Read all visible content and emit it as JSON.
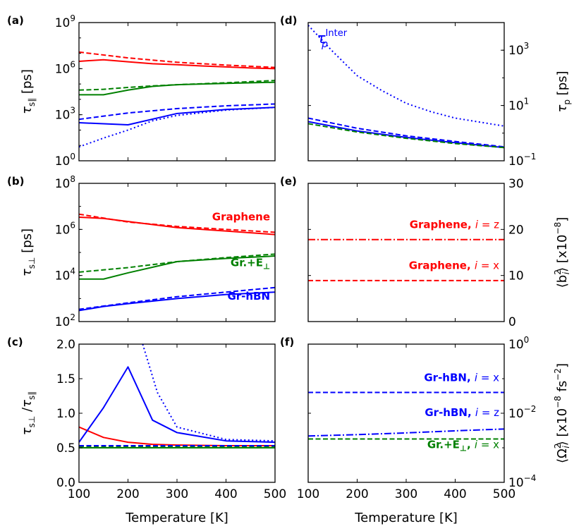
{
  "figure": {
    "xlabel": "Temperature [K]",
    "xticks": [
      "100",
      "200",
      "300",
      "400",
      "500"
    ]
  },
  "colors": {
    "red": "#ff0000",
    "green": "#008000",
    "blue": "#0000ff"
  },
  "chart_data": [
    {
      "id": "a",
      "panel_label": "(a)",
      "type": "line",
      "yscale": "log",
      "xlim": [
        100,
        500
      ],
      "ylim": [
        1,
        1000000000
      ],
      "ylabel_main": "τ",
      "ylabel_sub": "s∥",
      "ylabel_unit": " [ps]",
      "yticks": [
        {
          "v": 1,
          "base": "10",
          "exp": "0"
        },
        {
          "v": 1000,
          "base": "10",
          "exp": "3"
        },
        {
          "v": 1000000,
          "base": "10",
          "exp": "6"
        },
        {
          "v": 1000000000,
          "base": "10",
          "exp": "9"
        }
      ],
      "series": [
        {
          "color": "red",
          "style": "solid",
          "x": [
            100,
            150,
            200,
            250,
            300,
            350,
            400,
            450,
            500
          ],
          "y": [
            3000000,
            3800000,
            2800000,
            2100000,
            1800000,
            1500000,
            1300000,
            1100000,
            1000000
          ]
        },
        {
          "color": "red",
          "style": "dashed",
          "x": [
            100,
            200,
            300,
            400,
            500
          ],
          "y": [
            12000000,
            5000000,
            2600000,
            1700000,
            1200000
          ]
        },
        {
          "color": "green",
          "style": "solid",
          "x": [
            100,
            150,
            200,
            250,
            300,
            400,
            500
          ],
          "y": [
            20000,
            20000,
            40000,
            70000,
            90000,
            110000,
            130000
          ]
        },
        {
          "color": "green",
          "style": "dashed",
          "x": [
            100,
            150,
            200,
            250,
            300,
            400,
            500
          ],
          "y": [
            40000,
            45000,
            60000,
            75000,
            90000,
            120000,
            170000
          ]
        },
        {
          "color": "blue",
          "style": "solid",
          "x": [
            100,
            200,
            300,
            400,
            500
          ],
          "y": [
            300,
            220,
            1200,
            2200,
            3000
          ]
        },
        {
          "color": "blue",
          "style": "dashed",
          "x": [
            100,
            200,
            300,
            400,
            500
          ],
          "y": [
            500,
            1300,
            2500,
            3800,
            5000
          ]
        },
        {
          "color": "blue",
          "style": "dotted",
          "x": [
            100,
            150,
            200,
            250,
            300,
            400,
            500
          ],
          "y": [
            8,
            30,
            100,
            400,
            900,
            2000,
            3000
          ]
        }
      ],
      "annotations": []
    },
    {
      "id": "b",
      "panel_label": "(b)",
      "type": "line",
      "yscale": "log",
      "xlim": [
        100,
        500
      ],
      "ylim": [
        100,
        100000000
      ],
      "ylabel_main": "τ",
      "ylabel_sub": "s⊥",
      "ylabel_unit": " [ps]",
      "yticks": [
        {
          "v": 100,
          "base": "10",
          "exp": "2"
        },
        {
          "v": 10000,
          "base": "10",
          "exp": "4"
        },
        {
          "v": 1000000,
          "base": "10",
          "exp": "6"
        },
        {
          "v": 100000000,
          "base": "10",
          "exp": "8"
        }
      ],
      "series": [
        {
          "color": "red",
          "style": "solid",
          "x": [
            100,
            150,
            200,
            300,
            400,
            500
          ],
          "y": [
            3400000,
            3000000,
            2200000,
            1200000,
            850000,
            600000
          ]
        },
        {
          "color": "red",
          "style": "dashed",
          "x": [
            100,
            200,
            300,
            400,
            500
          ],
          "y": [
            4600000,
            2100000,
            1350000,
            1000000,
            750000
          ]
        },
        {
          "color": "green",
          "style": "solid",
          "x": [
            100,
            150,
            200,
            300,
            400,
            500
          ],
          "y": [
            7000,
            7000,
            13000,
            40000,
            55000,
            70000
          ]
        },
        {
          "color": "green",
          "style": "dashed",
          "x": [
            100,
            200,
            300,
            400,
            500
          ],
          "y": [
            14000,
            22000,
            40000,
            60000,
            85000
          ]
        },
        {
          "color": "blue",
          "style": "solid",
          "x": [
            100,
            150,
            200,
            300,
            400,
            500
          ],
          "y": [
            300,
            450,
            600,
            1000,
            1500,
            1900
          ]
        },
        {
          "color": "blue",
          "style": "dashed",
          "x": [
            100,
            150,
            200,
            300,
            400,
            500
          ],
          "y": [
            340,
            470,
            650,
            1200,
            1900,
            3000
          ]
        }
      ],
      "annotations": [
        {
          "text": "Graphene",
          "color": "red",
          "x": 490,
          "y": 2500000
        },
        {
          "text": "Gr.+E",
          "sub": "⊥",
          "color": "green",
          "x": 490,
          "y": 25000
        },
        {
          "text": "Gr-hBN",
          "color": "blue",
          "x": 490,
          "y": 900
        }
      ]
    },
    {
      "id": "c",
      "panel_label": "(c)",
      "type": "line",
      "yscale": "linear",
      "xlim": [
        100,
        500
      ],
      "ylim": [
        0,
        2.0
      ],
      "ylabel_main": "τ",
      "ylabel_sub": "s⊥",
      "ylabel_sep": " /",
      "ylabel_main2": "τ",
      "ylabel_sub2": "s∥",
      "yticks": [
        {
          "v": 0,
          "label": "0.0"
        },
        {
          "v": 0.5,
          "label": "0.5"
        },
        {
          "v": 1.0,
          "label": "1.0"
        },
        {
          "v": 1.5,
          "label": "1.5"
        },
        {
          "v": 2.0,
          "label": "2.0"
        }
      ],
      "series": [
        {
          "color": "red",
          "style": "solid",
          "x": [
            100,
            150,
            200,
            250,
            300,
            400,
            500
          ],
          "y": [
            0.8,
            0.65,
            0.58,
            0.55,
            0.54,
            0.53,
            0.53
          ]
        },
        {
          "color": "red",
          "style": "dashed",
          "x": [
            100,
            300,
            500
          ],
          "y": [
            0.53,
            0.53,
            0.53
          ]
        },
        {
          "color": "green",
          "style": "solid",
          "x": [
            100,
            300,
            500
          ],
          "y": [
            0.5,
            0.5,
            0.5
          ]
        },
        {
          "color": "green",
          "style": "dashed",
          "x": [
            100,
            300,
            500
          ],
          "y": [
            0.52,
            0.52,
            0.52
          ]
        },
        {
          "color": "blue",
          "style": "solid",
          "x": [
            100,
            150,
            200,
            250,
            300,
            400,
            500
          ],
          "y": [
            0.58,
            1.08,
            1.67,
            0.9,
            0.72,
            0.6,
            0.58
          ]
        },
        {
          "color": "blue",
          "style": "dashed",
          "x": [
            100,
            300,
            500
          ],
          "y": [
            0.53,
            0.53,
            0.53
          ]
        },
        {
          "color": "blue",
          "style": "dotted",
          "x": [
            230,
            260,
            300,
            400,
            500
          ],
          "y": [
            2.0,
            1.3,
            0.8,
            0.62,
            0.6
          ]
        }
      ],
      "annotations": []
    },
    {
      "id": "d",
      "panel_label": "(d)",
      "type": "line",
      "yscale": "log",
      "xlim": [
        100,
        500
      ],
      "ylim": [
        0.1,
        10000
      ],
      "ylabel_main": "τ",
      "ylabel_sub": "p",
      "ylabel_unit": " [ps]",
      "yticks": [
        {
          "v": 0.1,
          "base": "10",
          "exp": "−1"
        },
        {
          "v": 10,
          "base": "10",
          "exp": "1"
        },
        {
          "v": 1000,
          "base": "10",
          "exp": "3"
        }
      ],
      "series": [
        {
          "color": "blue",
          "style": "dotted",
          "x": [
            100,
            150,
            200,
            250,
            300,
            350,
            400,
            500
          ],
          "y": [
            8000,
            900,
            120,
            35,
            12,
            6,
            3.5,
            1.8
          ]
        },
        {
          "color": "blue",
          "style": "dashed",
          "x": [
            100,
            200,
            300,
            400,
            500
          ],
          "y": [
            3.5,
            1.5,
            0.8,
            0.5,
            0.32
          ]
        },
        {
          "color": "blue",
          "style": "solid",
          "x": [
            100,
            200,
            300,
            400,
            500
          ],
          "y": [
            2.6,
            1.2,
            0.7,
            0.45,
            0.3
          ]
        },
        {
          "color": "green",
          "style": "dashed",
          "x": [
            100,
            200,
            300,
            400,
            500
          ],
          "y": [
            2.2,
            1.1,
            0.65,
            0.42,
            0.3
          ]
        }
      ],
      "annotations": [
        {
          "text": "τ",
          "sub": "p",
          "sup": "Inter",
          "color": "blue",
          "x": 118,
          "y": 1800
        }
      ]
    },
    {
      "id": "e",
      "panel_label": "(e)",
      "type": "line",
      "yscale": "linear",
      "xlim": [
        100,
        500
      ],
      "ylim": [
        0,
        30
      ],
      "ylabel_text": "⟨b",
      "ylabel_sup": "2",
      "ylabel_sub": "i",
      "ylabel_rest": "⟩ [x10",
      "ylabel_sup2": "−8",
      "ylabel_end": "]",
      "yticks": [
        {
          "v": 0,
          "label": "0"
        },
        {
          "v": 10,
          "label": "10"
        },
        {
          "v": 20,
          "label": "20"
        },
        {
          "v": 30,
          "label": "30"
        }
      ],
      "series": [
        {
          "color": "red",
          "style": "dashdot",
          "x": [
            100,
            500
          ],
          "y": [
            17.8,
            17.8
          ]
        },
        {
          "color": "red",
          "style": "dashed",
          "x": [
            100,
            500
          ],
          "y": [
            8.9,
            8.9
          ]
        }
      ],
      "annotations": [
        {
          "text": "Graphene, ",
          "italic": "i",
          "rest": " = z",
          "color": "red",
          "x": 490,
          "y": 20.3
        },
        {
          "text": "Graphene, ",
          "italic": "i",
          "rest": " = x",
          "color": "red",
          "x": 490,
          "y": 11.4
        }
      ]
    },
    {
      "id": "f",
      "panel_label": "(f)",
      "type": "line",
      "yscale": "log",
      "xlim": [
        100,
        500
      ],
      "ylim": [
        0.0001,
        1
      ],
      "ylabel_text": "⟨Ω",
      "ylabel_sup": "2",
      "ylabel_sub": "i",
      "ylabel_rest": "⟩ [x10",
      "ylabel_sup2": "−8",
      "ylabel_end": " fs",
      "ylabel_sup3": "−2",
      "ylabel_end2": "]",
      "yticks": [
        {
          "v": 0.0001,
          "base": "10",
          "exp": "−4"
        },
        {
          "v": 0.01,
          "base": "10",
          "exp": "−2"
        },
        {
          "v": 1,
          "base": "10",
          "exp": "0"
        }
      ],
      "series": [
        {
          "color": "blue",
          "style": "dashed",
          "x": [
            100,
            500
          ],
          "y": [
            0.04,
            0.04
          ]
        },
        {
          "color": "blue",
          "style": "dashdot",
          "x": [
            100,
            200,
            300,
            400,
            500
          ],
          "y": [
            0.0022,
            0.0024,
            0.0027,
            0.0031,
            0.0035
          ]
        },
        {
          "color": "green",
          "style": "dashed",
          "x": [
            100,
            500
          ],
          "y": [
            0.0018,
            0.0018
          ]
        }
      ],
      "annotations": [
        {
          "text": "Gr-hBN, ",
          "italic": "i",
          "rest": " = x",
          "color": "blue",
          "x": 490,
          "y": 0.085
        },
        {
          "text": "Gr-hBN, ",
          "italic": "i",
          "rest": " = z",
          "color": "blue",
          "x": 490,
          "y": 0.0082
        },
        {
          "text": "Gr.+E",
          "sub": "⊥",
          "tail": ", ",
          "italic": "i",
          "rest": " = x",
          "color": "green",
          "x": 490,
          "y": 0.00098
        }
      ]
    }
  ]
}
